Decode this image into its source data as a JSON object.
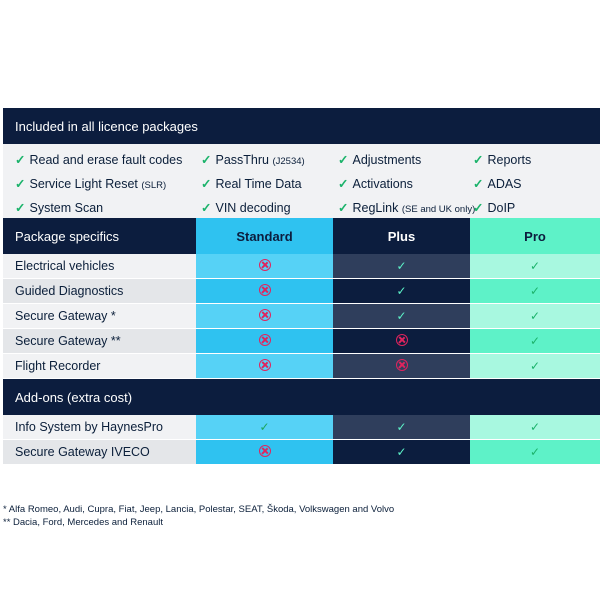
{
  "included": {
    "title": "Included in all licence packages",
    "columns": [
      [
        {
          "text": "Read and erase fault codes",
          "small": ""
        },
        {
          "text": "Service Light Reset",
          "small": "(SLR)"
        },
        {
          "text": "System Scan",
          "small": ""
        }
      ],
      [
        {
          "text": "PassThru",
          "small": "(J2534)"
        },
        {
          "text": "Real Time Data",
          "small": ""
        },
        {
          "text": "VIN decoding",
          "small": ""
        }
      ],
      [
        {
          "text": "Adjustments",
          "small": ""
        },
        {
          "text": "Activations",
          "small": ""
        },
        {
          "text": "RegLink",
          "small": "(SE and UK only)"
        }
      ],
      [
        {
          "text": "Reports",
          "small": ""
        },
        {
          "text": "ADAS",
          "small": ""
        },
        {
          "text": "DoIP",
          "small": ""
        }
      ]
    ]
  },
  "packages": {
    "title": "Package specifics",
    "headers": [
      "Standard",
      "Plus",
      "Pro"
    ],
    "rows": [
      {
        "label": "Electrical vehicles",
        "values": [
          false,
          true,
          true
        ]
      },
      {
        "label": "Guided Diagnostics",
        "values": [
          false,
          true,
          true
        ]
      },
      {
        "label": "Secure Gateway *",
        "values": [
          false,
          true,
          true
        ]
      },
      {
        "label": "Secure Gateway **",
        "values": [
          false,
          false,
          true
        ]
      },
      {
        "label": "Flight Recorder",
        "values": [
          false,
          false,
          true
        ]
      }
    ]
  },
  "addons": {
    "title": "Add-ons (extra cost)",
    "rows": [
      {
        "label": "Info System by HaynesPro",
        "values": [
          true,
          true,
          true
        ]
      },
      {
        "label": "Secure Gateway IVECO",
        "values": [
          false,
          true,
          true
        ]
      }
    ]
  },
  "footnotes": [
    "*   Alfa Romeo, Audi, Cupra, Fiat, Jeep, Lancia, Polestar, SEAT, Škoda, Volkswagen and Volvo",
    "** Dacia, Ford, Mercedes and Renault"
  ],
  "glyphs": {
    "check": "✓"
  },
  "colors": {
    "navy": "#0c1d3e",
    "standard": "#2fc2f0",
    "plus": "#0c1d3e",
    "pro": "#5ef2c8",
    "no": "#e0245e",
    "check": "#1cb36b"
  }
}
